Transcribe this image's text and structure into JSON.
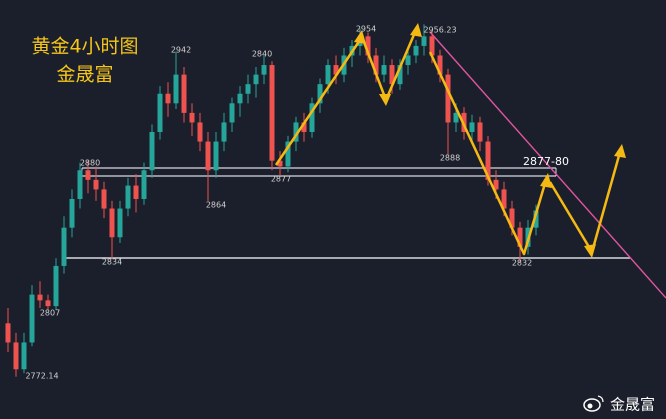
{
  "chart_data": {
    "type": "candlestick",
    "title": "黄金4小时图",
    "subtitle": "金晟富",
    "ylim": [
      2750,
      2969
    ],
    "up_color": "#26a69a",
    "down_color": "#ef5350",
    "ohlc": [
      [
        2800,
        2808,
        2785,
        2790
      ],
      [
        2790,
        2795,
        2772.14,
        2776
      ],
      [
        2776,
        2795,
        2774,
        2790
      ],
      [
        2790,
        2820,
        2788,
        2815
      ],
      [
        2815,
        2822,
        2808,
        2812
      ],
      [
        2812,
        2815,
        2807,
        2809
      ],
      [
        2809,
        2834,
        2807,
        2830
      ],
      [
        2830,
        2856,
        2826,
        2850
      ],
      [
        2850,
        2870,
        2845,
        2865
      ],
      [
        2865,
        2884,
        2860,
        2880
      ],
      [
        2880,
        2885,
        2868,
        2875
      ],
      [
        2875,
        2882,
        2864,
        2870
      ],
      [
        2870,
        2874,
        2855,
        2860
      ],
      [
        2860,
        2864,
        2834,
        2845
      ],
      [
        2845,
        2864,
        2842,
        2860
      ],
      [
        2860,
        2876,
        2856,
        2872
      ],
      [
        2872,
        2878,
        2858,
        2865
      ],
      [
        2865,
        2884,
        2862,
        2880
      ],
      [
        2880,
        2904,
        2876,
        2900
      ],
      [
        2900,
        2924,
        2896,
        2920
      ],
      [
        2920,
        2926,
        2908,
        2915
      ],
      [
        2915,
        2942,
        2912,
        2930
      ],
      [
        2930,
        2934,
        2905,
        2910
      ],
      [
        2910,
        2915,
        2898,
        2905
      ],
      [
        2905,
        2910,
        2890,
        2895
      ],
      [
        2895,
        2900,
        2864,
        2880
      ],
      [
        2880,
        2900,
        2876,
        2895
      ],
      [
        2895,
        2910,
        2890,
        2905
      ],
      [
        2905,
        2918,
        2900,
        2915
      ],
      [
        2915,
        2924,
        2908,
        2920
      ],
      [
        2920,
        2930,
        2915,
        2925
      ],
      [
        2925,
        2934,
        2918,
        2930
      ],
      [
        2930,
        2940,
        2925,
        2935
      ],
      [
        2935,
        2937,
        2880,
        2885
      ],
      [
        2885,
        2890,
        2877,
        2882
      ],
      [
        2882,
        2898,
        2879,
        2895
      ],
      [
        2895,
        2908,
        2890,
        2905
      ],
      [
        2905,
        2910,
        2895,
        2900
      ],
      [
        2900,
        2918,
        2897,
        2915
      ],
      [
        2915,
        2928,
        2910,
        2925
      ],
      [
        2925,
        2938,
        2920,
        2935
      ],
      [
        2935,
        2940,
        2925,
        2930
      ],
      [
        2930,
        2944,
        2926,
        2940
      ],
      [
        2940,
        2948,
        2934,
        2945
      ],
      [
        2945,
        2954,
        2940,
        2950
      ],
      [
        2950,
        2952,
        2936,
        2940
      ],
      [
        2940,
        2944,
        2926,
        2930
      ],
      [
        2930,
        2940,
        2926,
        2935
      ],
      [
        2935,
        2938,
        2920,
        2925
      ],
      [
        2925,
        2938,
        2922,
        2935
      ],
      [
        2935,
        2944,
        2930,
        2940
      ],
      [
        2940,
        2948,
        2936,
        2945
      ],
      [
        2945,
        2956.23,
        2940,
        2950
      ],
      [
        2950,
        2953,
        2936,
        2940
      ],
      [
        2940,
        2943,
        2926,
        2930
      ],
      [
        2930,
        2933,
        2888,
        2905
      ],
      [
        2905,
        2915,
        2900,
        2910
      ],
      [
        2910,
        2913,
        2896,
        2900
      ],
      [
        2900,
        2909,
        2895,
        2905
      ],
      [
        2905,
        2908,
        2890,
        2895
      ],
      [
        2895,
        2898,
        2872,
        2875
      ],
      [
        2875,
        2880,
        2865,
        2870
      ],
      [
        2870,
        2874,
        2856,
        2860
      ],
      [
        2860,
        2864,
        2846,
        2850
      ],
      [
        2850,
        2853,
        2832,
        2840
      ],
      [
        2840,
        2854,
        2836,
        2850
      ],
      [
        2850,
        2862,
        2846,
        2859
      ]
    ],
    "price_labels": [
      "2942",
      "2840",
      "2954",
      "2956.23",
      "2880",
      "2877",
      "2864",
      "2834",
      "2888",
      "2832",
      "2807",
      "2772.14"
    ],
    "zone_label": "2877-80",
    "watermark": "金晟富"
  }
}
